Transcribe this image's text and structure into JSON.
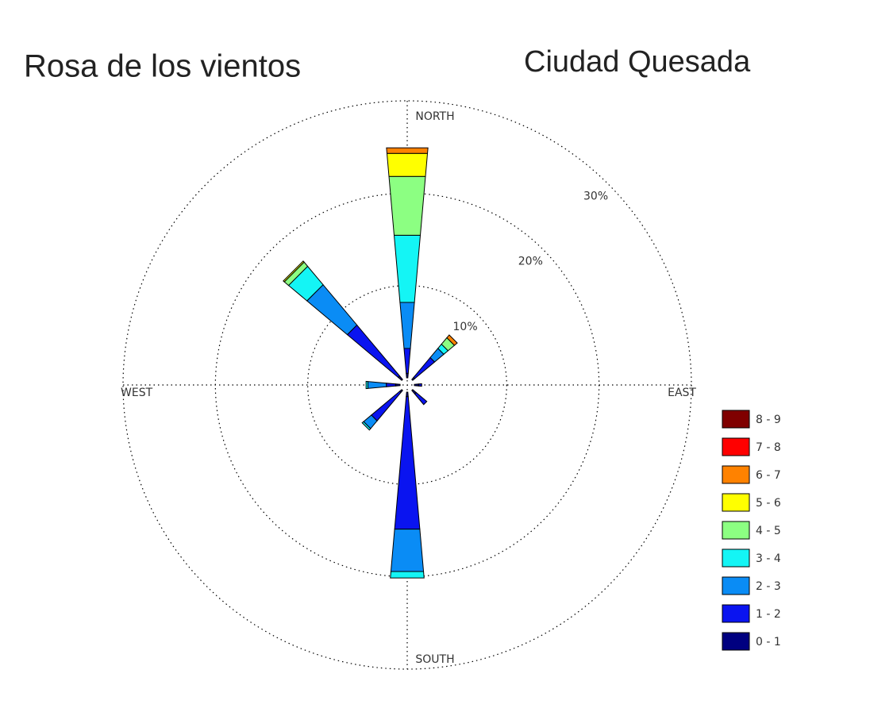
{
  "chart_data": {
    "type": "windrose",
    "title": "Rosa de los vientos",
    "subtitle": "Ciudad Quesada",
    "direction_labels": [
      "NORTH",
      "EAST",
      "SOUTH",
      "WEST"
    ],
    "x": [
      0,
      45,
      90,
      135,
      180,
      225,
      270,
      315
    ],
    "rlim": [
      0,
      30
    ],
    "rticks": [
      {
        "value": 10,
        "label": "10%"
      },
      {
        "value": 20,
        "label": "20%"
      },
      {
        "value": 30,
        "label": "30%"
      }
    ],
    "grid": true,
    "legend": "right",
    "series": [
      {
        "name": "0 - 1",
        "color": "#000080",
        "values": [
          0.5,
          0.3,
          0.5,
          0.5,
          0.5,
          0.3,
          0.5,
          0.5
        ]
      },
      {
        "name": "1 - 2",
        "color": "#0a14f0",
        "values": [
          2.7,
          2.8,
          0.3,
          1.5,
          14.4,
          4.0,
          1.0,
          7.2
        ]
      },
      {
        "name": "2 - 3",
        "color": "#0a8cf5",
        "values": [
          5.0,
          1.3,
          0,
          0,
          4.6,
          1.1,
          2.0,
          5.7
        ]
      },
      {
        "name": "3 - 4",
        "color": "#14f5f5",
        "values": [
          7.3,
          0.6,
          0,
          0,
          0.7,
          0.2,
          0.2,
          2.6
        ]
      },
      {
        "name": "4 - 5",
        "color": "#8cff82",
        "values": [
          6.4,
          0.9,
          0,
          0,
          0,
          0,
          0,
          0.6
        ]
      },
      {
        "name": "5 - 6",
        "color": "#ffff00",
        "values": [
          2.5,
          0,
          0,
          0,
          0,
          0,
          0,
          0.15
        ]
      },
      {
        "name": "6 - 7",
        "color": "#ff8200",
        "values": [
          0.6,
          0.4,
          0,
          0,
          0,
          0,
          0,
          0
        ]
      },
      {
        "name": "7 - 8",
        "color": "#ff0000",
        "values": [
          0,
          0,
          0,
          0,
          0,
          0,
          0,
          0
        ]
      },
      {
        "name": "8 - 9",
        "color": "#800000",
        "values": [
          0,
          0,
          0,
          0,
          0,
          0,
          0,
          0
        ]
      }
    ]
  }
}
